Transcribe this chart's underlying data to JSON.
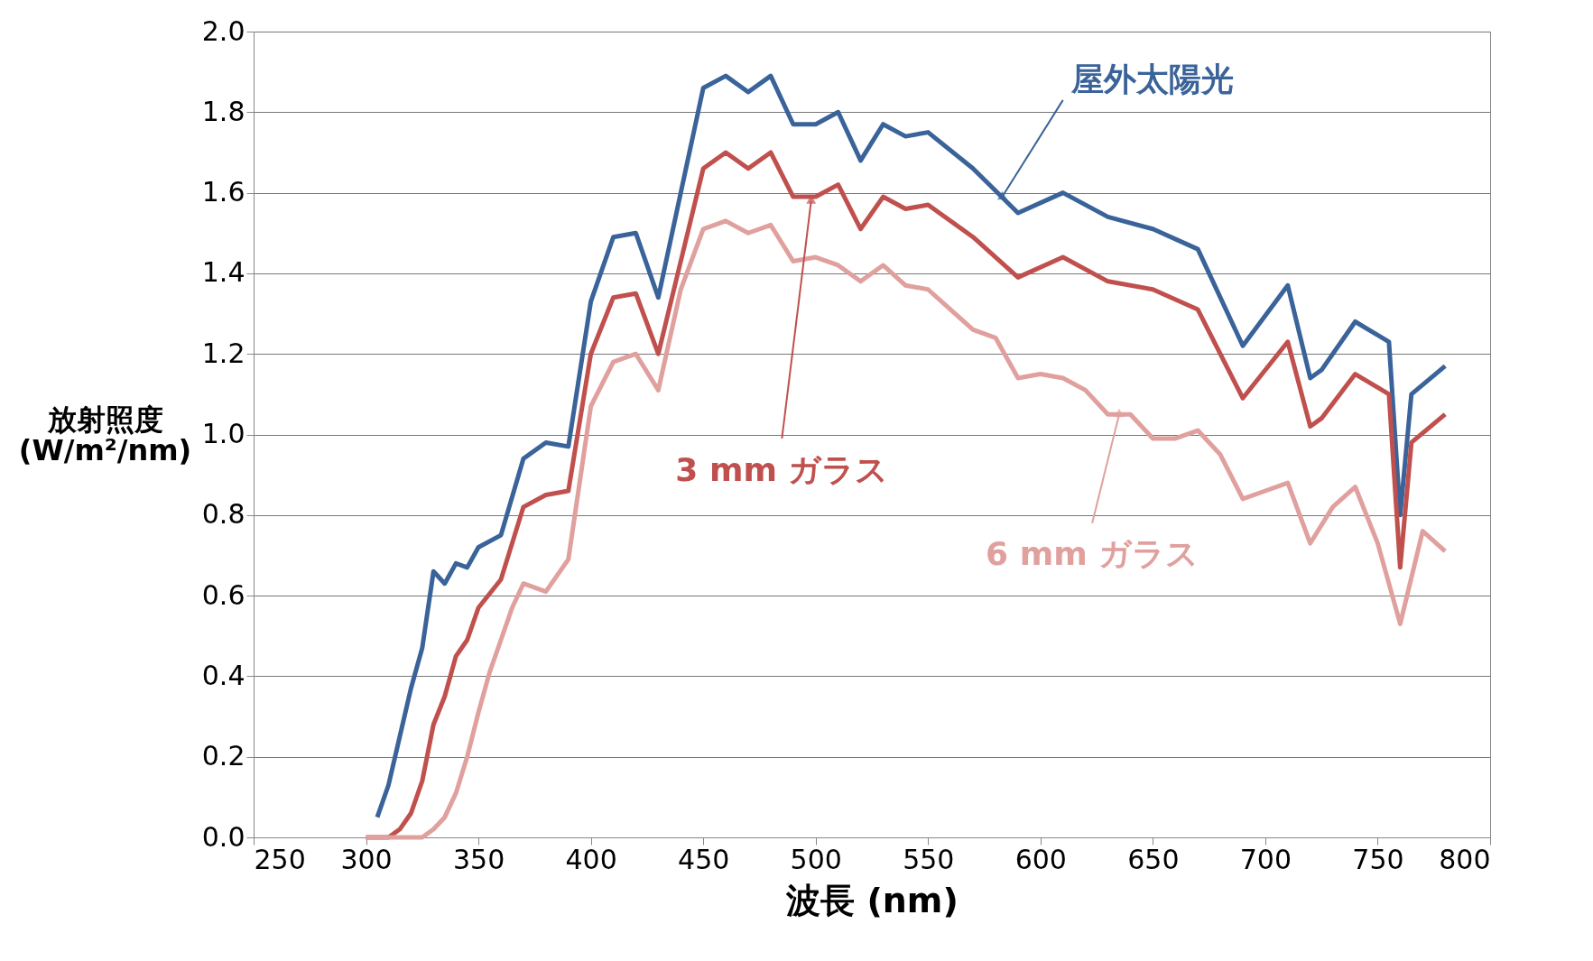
{
  "chart_data": {
    "type": "line",
    "xlabel": "波長 (nm)",
    "ylabel": "放射照度\n(W/m²/nm)",
    "xlim": [
      250,
      800
    ],
    "xticks": [
      250,
      300,
      350,
      400,
      450,
      500,
      550,
      600,
      650,
      700,
      750,
      800
    ],
    "ylim": [
      0,
      2.0
    ],
    "yticks": [
      {
        "value": 0,
        "label": "0.0"
      },
      {
        "value": 0.2,
        "label": "0.2"
      },
      {
        "value": 0.4,
        "label": "0.4"
      },
      {
        "value": 0.6,
        "label": "0.6"
      },
      {
        "value": 0.8,
        "label": "0.8"
      },
      {
        "value": 1.0,
        "label": "1.0"
      },
      {
        "value": 1.2,
        "label": "1.2"
      },
      {
        "value": 1.4,
        "label": "1.4"
      },
      {
        "value": 1.6,
        "label": "1.6"
      },
      {
        "value": 1.8,
        "label": "1.8"
      },
      {
        "value": 2.0,
        "label": "2.0"
      }
    ],
    "grid": "y",
    "marker": "none",
    "line_style": "solid",
    "series": [
      {
        "color": "#3a6399",
        "x": [
          305,
          310,
          315,
          320,
          325,
          330,
          335,
          340,
          345,
          350,
          360,
          370,
          380,
          390,
          400,
          410,
          420,
          430,
          440,
          450,
          460,
          470,
          480,
          490,
          500,
          510,
          520,
          530,
          540,
          550,
          570,
          590,
          610,
          630,
          650,
          670,
          690,
          710,
          720,
          725,
          740,
          755,
          760,
          765,
          780
        ],
        "values": [
          0.05,
          0.13,
          0.25,
          0.37,
          0.47,
          0.66,
          0.63,
          0.68,
          0.67,
          0.72,
          0.75,
          0.94,
          0.98,
          0.97,
          1.33,
          1.49,
          1.5,
          1.34,
          1.6,
          1.86,
          1.89,
          1.85,
          1.89,
          1.77,
          1.77,
          1.8,
          1.68,
          1.77,
          1.74,
          1.75,
          1.66,
          1.55,
          1.6,
          1.54,
          1.51,
          1.46,
          1.22,
          1.37,
          1.14,
          1.16,
          1.28,
          1.23,
          0.8,
          1.1,
          1.17
        ]
      },
      {
        "color": "#c0504d",
        "x": [
          300,
          310,
          315,
          320,
          325,
          330,
          335,
          340,
          345,
          350,
          360,
          370,
          380,
          390,
          400,
          410,
          420,
          430,
          440,
          450,
          460,
          470,
          480,
          490,
          500,
          510,
          520,
          530,
          540,
          550,
          570,
          590,
          610,
          630,
          650,
          670,
          690,
          710,
          720,
          725,
          740,
          755,
          760,
          765,
          780
        ],
        "values": [
          0,
          0,
          0.02,
          0.06,
          0.14,
          0.28,
          0.35,
          0.45,
          0.49,
          0.57,
          0.64,
          0.82,
          0.85,
          0.86,
          1.2,
          1.34,
          1.35,
          1.2,
          1.43,
          1.66,
          1.7,
          1.66,
          1.7,
          1.59,
          1.59,
          1.62,
          1.51,
          1.59,
          1.56,
          1.57,
          1.49,
          1.39,
          1.44,
          1.38,
          1.36,
          1.31,
          1.09,
          1.23,
          1.02,
          1.04,
          1.15,
          1.1,
          0.67,
          0.98,
          1.05
        ]
      },
      {
        "color": "#e0a09e",
        "x": [
          300,
          310,
          320,
          325,
          330,
          335,
          340,
          345,
          350,
          355,
          360,
          365,
          370,
          380,
          390,
          400,
          410,
          420,
          430,
          440,
          450,
          460,
          470,
          480,
          490,
          500,
          510,
          520,
          530,
          540,
          550,
          560,
          570,
          580,
          590,
          600,
          610,
          620,
          630,
          640,
          650,
          660,
          670,
          680,
          690,
          700,
          710,
          720,
          730,
          740,
          750,
          760,
          770,
          780
        ],
        "values": [
          0,
          0,
          0,
          0,
          0.02,
          0.05,
          0.11,
          0.2,
          0.31,
          0.41,
          0.49,
          0.57,
          0.63,
          0.61,
          0.69,
          1.07,
          1.18,
          1.2,
          1.11,
          1.36,
          1.51,
          1.53,
          1.5,
          1.52,
          1.43,
          1.44,
          1.42,
          1.38,
          1.42,
          1.37,
          1.36,
          1.31,
          1.26,
          1.24,
          1.14,
          1.15,
          1.14,
          1.11,
          1.05,
          1.05,
          0.99,
          0.99,
          1.01,
          0.95,
          0.84,
          0.86,
          0.88,
          0.73,
          0.82,
          0.87,
          0.73,
          0.53,
          0.76,
          0.71
        ]
      }
    ],
    "annotations": [
      {
        "text": "屋外太陽光",
        "x": 583,
        "y": 1.59
      },
      {
        "text": "3 mm ガラス",
        "x": 498,
        "y": 1.58
      },
      {
        "text": "6 mm ガラス",
        "x": 635,
        "y": 1.05
      }
    ]
  }
}
